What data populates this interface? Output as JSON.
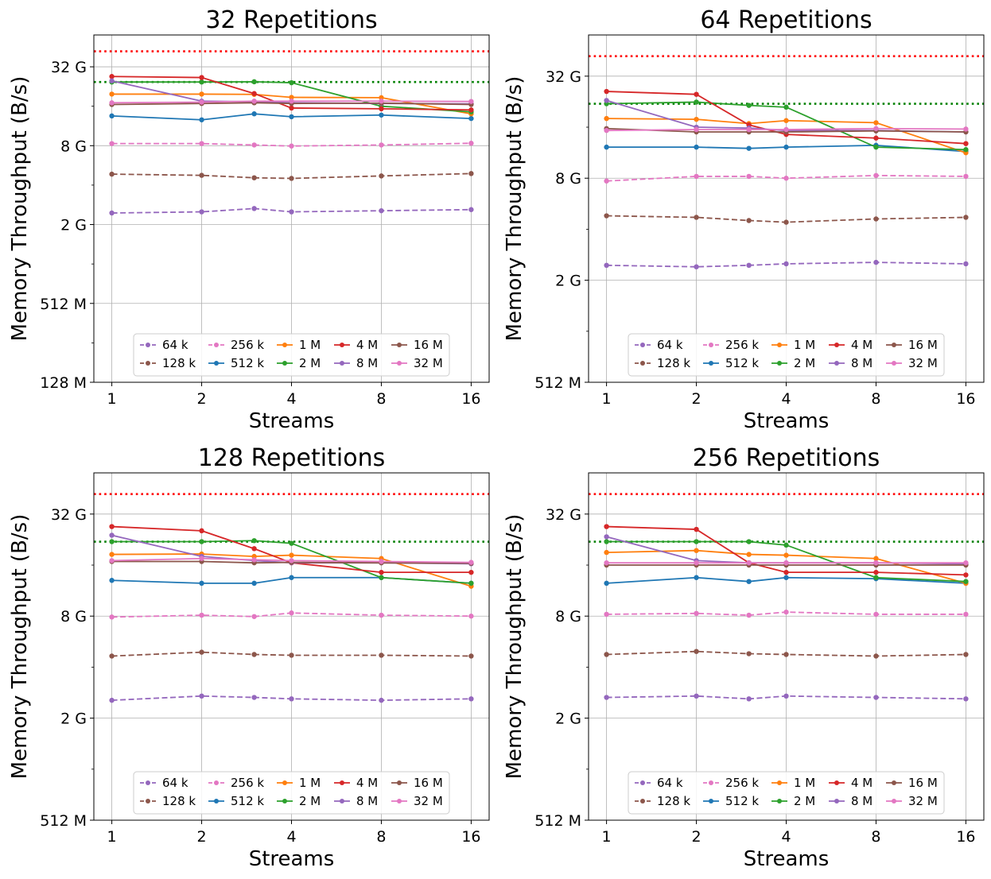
{
  "figure": {
    "xlabel": "Streams",
    "ylabel": "Memory Throughput (B/s)",
    "x_ticks": [
      1,
      2,
      4,
      8,
      16
    ],
    "x_tick_labels": [
      "1",
      "2",
      "4",
      "8",
      "16"
    ],
    "colors": {
      "blue": "#1f77b4",
      "orange": "#ff7f0e",
      "green": "#2ca02c",
      "red": "#d62728",
      "purple": "#9467bd",
      "brown": "#8c564b",
      "pink": "#e377c2"
    }
  },
  "chart_data": [
    {
      "type": "line",
      "title": "32 Repetitions",
      "xlabel": "Streams",
      "ylabel": "Memory Throughput (B/s)",
      "x": [
        1,
        2,
        3,
        4,
        8,
        16
      ],
      "x_ticks": [
        1,
        2,
        4,
        8,
        16
      ],
      "x_scale": "log2",
      "y_scale": "log2",
      "ylim": [
        128,
        56
      ],
      "y_ticks": [
        128,
        512,
        2,
        8,
        32
      ],
      "y_tick_labels": [
        "128 M",
        "512 M",
        "2 G",
        "8 G",
        "32 G"
      ],
      "ylim_gib": [
        0.125,
        56
      ],
      "y_ticks_gib": [
        0.125,
        0.5,
        2,
        8,
        32
      ],
      "ref_lines": [
        {
          "y": 42,
          "color": "#ff0000",
          "style": "dotted"
        },
        {
          "y": 24.5,
          "color": "#008000",
          "style": "dotted"
        }
      ],
      "legend": {
        "placement": "lower-center",
        "columns": 5
      },
      "grid": true,
      "series": [
        {
          "name": "64 k",
          "color": "#9467bd",
          "dashed": true,
          "values": [
            2.45,
            2.5,
            2.65,
            2.5,
            2.55,
            2.6
          ]
        },
        {
          "name": "128 k",
          "color": "#8c564b",
          "dashed": true,
          "values": [
            4.85,
            4.75,
            4.55,
            4.5,
            4.7,
            4.9
          ]
        },
        {
          "name": "256 k",
          "color": "#e377c2",
          "dashed": true,
          "values": [
            8.3,
            8.3,
            8.1,
            7.95,
            8.1,
            8.35
          ]
        },
        {
          "name": "512 k",
          "color": "#1f77b4",
          "dashed": false,
          "values": [
            13.5,
            12.6,
            14.0,
            13.3,
            13.7,
            12.9
          ]
        },
        {
          "name": "1 M",
          "color": "#ff7f0e",
          "dashed": false,
          "values": [
            19.8,
            19.8,
            19.7,
            18.7,
            18.6,
            14.0
          ]
        },
        {
          "name": "2 M",
          "color": "#2ca02c",
          "dashed": false,
          "values": [
            24.5,
            24.5,
            24.6,
            24.2,
            16.0,
            14.5
          ]
        },
        {
          "name": "4 M",
          "color": "#d62728",
          "dashed": false,
          "values": [
            27.0,
            26.5,
            20.0,
            15.5,
            15.3,
            15.0
          ]
        },
        {
          "name": "8 M",
          "color": "#9467bd",
          "dashed": false,
          "values": [
            25.0,
            17.5,
            17.3,
            17.0,
            16.8,
            16.7
          ]
        },
        {
          "name": "16 M",
          "color": "#8c564b",
          "dashed": false,
          "values": [
            16.5,
            16.8,
            17.0,
            16.8,
            16.9,
            16.5
          ]
        },
        {
          "name": "32 M",
          "color": "#e377c2",
          "dashed": false,
          "values": [
            17.0,
            17.2,
            17.5,
            17.5,
            17.5,
            17.4
          ]
        }
      ]
    },
    {
      "type": "line",
      "title": "64 Repetitions",
      "xlabel": "Streams",
      "ylabel": "Memory Throughput (B/s)",
      "x": [
        1,
        2,
        3,
        4,
        8,
        16
      ],
      "x_ticks": [
        1,
        2,
        4,
        8,
        16
      ],
      "x_scale": "log2",
      "y_scale": "log2",
      "ylim": [
        512,
        56
      ],
      "y_ticks": [
        512,
        2,
        8,
        32
      ],
      "y_tick_labels": [
        "512 M",
        "2 G",
        "8 G",
        "32 G"
      ],
      "ylim_gib": [
        0.5,
        56
      ],
      "y_ticks_gib": [
        0.5,
        2,
        8,
        32
      ],
      "ref_lines": [
        {
          "y": 42,
          "color": "#ff0000",
          "style": "dotted"
        },
        {
          "y": 22,
          "color": "#008000",
          "style": "dotted"
        }
      ],
      "legend": {
        "placement": "lower-center",
        "columns": 5
      },
      "grid": true,
      "series": [
        {
          "name": "64 k",
          "color": "#9467bd",
          "dashed": true,
          "values": [
            2.45,
            2.4,
            2.45,
            2.5,
            2.55,
            2.5
          ]
        },
        {
          "name": "128 k",
          "color": "#8c564b",
          "dashed": true,
          "values": [
            4.8,
            4.7,
            4.5,
            4.4,
            4.6,
            4.7
          ]
        },
        {
          "name": "256 k",
          "color": "#e377c2",
          "dashed": true,
          "values": [
            7.7,
            8.2,
            8.2,
            8.0,
            8.3,
            8.2
          ]
        },
        {
          "name": "512 k",
          "color": "#1f77b4",
          "dashed": false,
          "values": [
            12.2,
            12.2,
            12.0,
            12.2,
            12.5,
            11.5
          ]
        },
        {
          "name": "1 M",
          "color": "#ff7f0e",
          "dashed": false,
          "values": [
            18.0,
            17.8,
            16.8,
            17.5,
            17.0,
            11.3
          ]
        },
        {
          "name": "2 M",
          "color": "#2ca02c",
          "dashed": false,
          "values": [
            22.0,
            22.5,
            21.5,
            21.0,
            12.2,
            11.8
          ]
        },
        {
          "name": "4 M",
          "color": "#d62728",
          "dashed": false,
          "values": [
            26.0,
            25.0,
            16.5,
            14.5,
            13.8,
            12.8
          ]
        },
        {
          "name": "8 M",
          "color": "#9467bd",
          "dashed": false,
          "values": [
            23.0,
            16.0,
            15.8,
            15.3,
            15.3,
            15.0
          ]
        },
        {
          "name": "16 M",
          "color": "#8c564b",
          "dashed": false,
          "values": [
            15.7,
            15.0,
            15.0,
            15.0,
            15.2,
            15.0
          ]
        },
        {
          "name": "32 M",
          "color": "#e377c2",
          "dashed": false,
          "values": [
            15.3,
            15.5,
            15.5,
            15.5,
            15.7,
            15.6
          ]
        }
      ]
    },
    {
      "type": "line",
      "title": "128 Repetitions",
      "xlabel": "Streams",
      "ylabel": "Memory Throughput (B/s)",
      "x": [
        1,
        2,
        3,
        4,
        8,
        16
      ],
      "x_ticks": [
        1,
        2,
        4,
        8,
        16
      ],
      "x_scale": "log2",
      "y_scale": "log2",
      "ylim": [
        512,
        56
      ],
      "y_ticks": [
        512,
        2,
        8,
        32
      ],
      "y_tick_labels": [
        "512 M",
        "2 G",
        "8 G",
        "32 G"
      ],
      "ylim_gib": [
        0.5,
        56
      ],
      "y_ticks_gib": [
        0.5,
        2,
        8,
        32
      ],
      "ref_lines": [
        {
          "y": 42,
          "color": "#ff0000",
          "style": "dotted"
        },
        {
          "y": 22,
          "color": "#008000",
          "style": "dotted"
        }
      ],
      "legend": {
        "placement": "lower-center",
        "columns": 5
      },
      "grid": true,
      "series": [
        {
          "name": "64 k",
          "color": "#9467bd",
          "dashed": true,
          "values": [
            2.55,
            2.7,
            2.65,
            2.6,
            2.55,
            2.6
          ]
        },
        {
          "name": "128 k",
          "color": "#8c564b",
          "dashed": true,
          "values": [
            4.65,
            4.9,
            4.75,
            4.7,
            4.7,
            4.65
          ]
        },
        {
          "name": "256 k",
          "color": "#e377c2",
          "dashed": true,
          "values": [
            7.9,
            8.1,
            7.95,
            8.35,
            8.1,
            8.0
          ]
        },
        {
          "name": "512 k",
          "color": "#1f77b4",
          "dashed": false,
          "values": [
            13.0,
            12.5,
            12.5,
            13.5,
            13.5,
            12.5
          ]
        },
        {
          "name": "1 M",
          "color": "#ff7f0e",
          "dashed": false,
          "values": [
            18.5,
            18.6,
            18.0,
            18.3,
            17.5,
            12.0
          ]
        },
        {
          "name": "2 M",
          "color": "#2ca02c",
          "dashed": false,
          "values": [
            22.0,
            22.0,
            22.3,
            21.5,
            13.5,
            12.5
          ]
        },
        {
          "name": "4 M",
          "color": "#d62728",
          "dashed": false,
          "values": [
            27.0,
            25.5,
            20.0,
            16.5,
            14.5,
            14.5
          ]
        },
        {
          "name": "8 M",
          "color": "#9467bd",
          "dashed": false,
          "values": [
            24.0,
            18.0,
            17.0,
            16.5,
            16.5,
            16.3
          ]
        },
        {
          "name": "16 M",
          "color": "#8c564b",
          "dashed": false,
          "values": [
            16.8,
            16.8,
            16.5,
            16.6,
            16.5,
            16.4
          ]
        },
        {
          "name": "32 M",
          "color": "#e377c2",
          "dashed": false,
          "values": [
            17.0,
            17.5,
            17.2,
            17.0,
            16.8,
            16.6
          ]
        }
      ]
    },
    {
      "type": "line",
      "title": "256 Repetitions",
      "xlabel": "Streams",
      "ylabel": "Memory Throughput (B/s)",
      "x": [
        1,
        2,
        3,
        4,
        8,
        16
      ],
      "x_ticks": [
        1,
        2,
        4,
        8,
        16
      ],
      "x_scale": "log2",
      "y_scale": "log2",
      "ylim": [
        512,
        56
      ],
      "y_ticks": [
        512,
        2,
        8,
        32
      ],
      "y_tick_labels": [
        "512 M",
        "2 G",
        "8 G",
        "32 G"
      ],
      "ylim_gib": [
        0.5,
        56
      ],
      "y_ticks_gib": [
        0.5,
        2,
        8,
        32
      ],
      "ref_lines": [
        {
          "y": 42,
          "color": "#ff0000",
          "style": "dotted"
        },
        {
          "y": 22,
          "color": "#008000",
          "style": "dotted"
        }
      ],
      "legend": {
        "placement": "lower-center",
        "columns": 5
      },
      "grid": true,
      "series": [
        {
          "name": "64 k",
          "color": "#9467bd",
          "dashed": true,
          "values": [
            2.65,
            2.7,
            2.6,
            2.7,
            2.65,
            2.6
          ]
        },
        {
          "name": "128 k",
          "color": "#8c564b",
          "dashed": true,
          "values": [
            4.75,
            4.95,
            4.8,
            4.75,
            4.65,
            4.75
          ]
        },
        {
          "name": "256 k",
          "color": "#e377c2",
          "dashed": true,
          "values": [
            8.2,
            8.3,
            8.1,
            8.45,
            8.2,
            8.2
          ]
        },
        {
          "name": "512 k",
          "color": "#1f77b4",
          "dashed": false,
          "values": [
            12.5,
            13.5,
            12.8,
            13.5,
            13.3,
            12.5
          ]
        },
        {
          "name": "1 M",
          "color": "#ff7f0e",
          "dashed": false,
          "values": [
            19.0,
            19.5,
            18.5,
            18.3,
            17.5,
            12.5
          ]
        },
        {
          "name": "2 M",
          "color": "#2ca02c",
          "dashed": false,
          "values": [
            22.0,
            22.0,
            22.0,
            21.0,
            13.5,
            12.8
          ]
        },
        {
          "name": "4 M",
          "color": "#d62728",
          "dashed": false,
          "values": [
            27.0,
            26.0,
            16.5,
            14.5,
            14.5,
            14.0
          ]
        },
        {
          "name": "8 M",
          "color": "#9467bd",
          "dashed": false,
          "values": [
            23.5,
            17.0,
            16.5,
            16.5,
            16.5,
            16.3
          ]
        },
        {
          "name": "16 M",
          "color": "#8c564b",
          "dashed": false,
          "values": [
            16.0,
            16.0,
            16.0,
            16.0,
            16.0,
            16.0
          ]
        },
        {
          "name": "32 M",
          "color": "#e377c2",
          "dashed": false,
          "values": [
            16.5,
            16.5,
            16.5,
            16.5,
            16.5,
            16.5
          ]
        }
      ]
    }
  ]
}
